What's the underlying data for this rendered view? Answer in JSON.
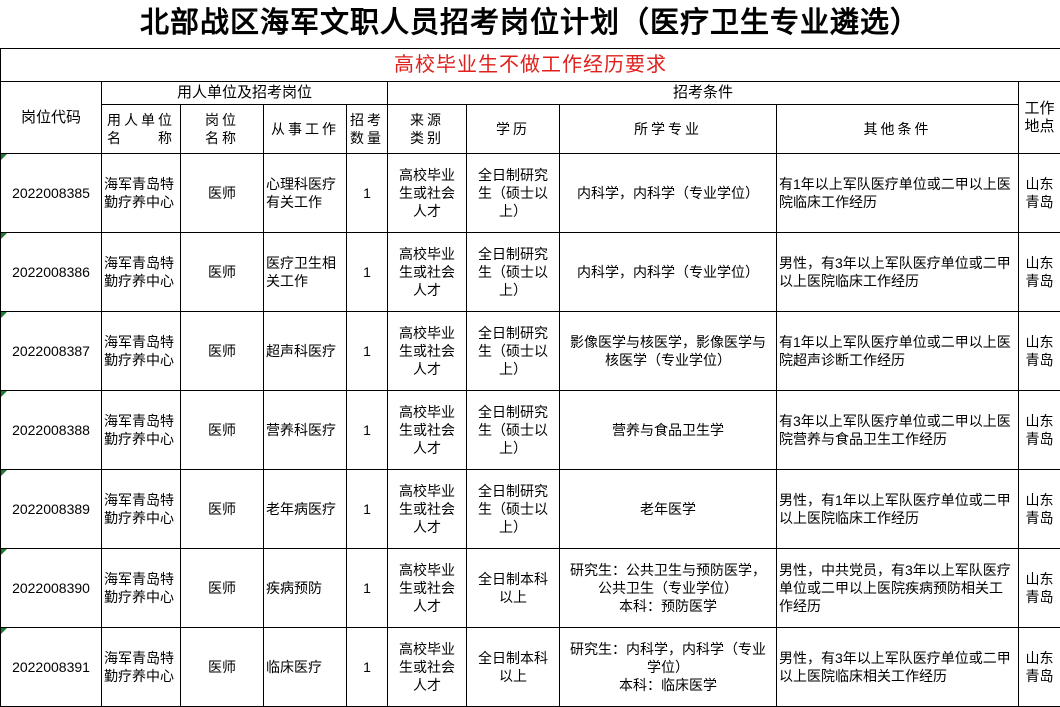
{
  "title": "北部战区海军文职人员招考岗位计划（医疗卫生专业遴选）",
  "banner": "高校毕业生不做工作经历要求",
  "headers": {
    "code": "岗位代码",
    "group_unit": "用人单位及招考岗位",
    "group_conditions": "招考条件",
    "unit_name": "用人单位\n名　　称",
    "post_name": "岗位\n名称",
    "work": "从事工作",
    "count": "招考\n数量",
    "source": "来源\n类别",
    "education": "学历",
    "major": "所学专业",
    "other": "其他条件",
    "location": "工作\n地点"
  },
  "rows": [
    {
      "code": "2022008385",
      "unit": "海军青岛特\n勤疗养中心",
      "post": "医师",
      "work": "心理科医疗\n有关工作",
      "count": "1",
      "source": "高校毕业\n生或社会\n人才",
      "education": "全日制研究\n生（硕士以\n上）",
      "major": "内科学，内科学（专业学位）",
      "other": "有1年以上军队医疗单位或二甲以上医院临床工作经历",
      "location": "山东\n青岛"
    },
    {
      "code": "2022008386",
      "unit": "海军青岛特\n勤疗养中心",
      "post": "医师",
      "work": "医疗卫生相\n关工作",
      "count": "1",
      "source": "高校毕业\n生或社会\n人才",
      "education": "全日制研究\n生（硕士以\n上）",
      "major": "内科学，内科学（专业学位）",
      "other": "男性，有3年以上军队医疗单位或二甲以上医院临床工作经历",
      "location": "山东\n青岛"
    },
    {
      "code": "2022008387",
      "unit": "海军青岛特\n勤疗养中心",
      "post": "医师",
      "work": "超声科医疗",
      "count": "1",
      "source": "高校毕业\n生或社会\n人才",
      "education": "全日制研究\n生（硕士以\n上）",
      "major": "影像医学与核医学，影像医学与\n核医学（专业学位）",
      "other": "有1年以上军队医疗单位或二甲以上医院超声诊断工作经历",
      "location": "山东\n青岛"
    },
    {
      "code": "2022008388",
      "unit": "海军青岛特\n勤疗养中心",
      "post": "医师",
      "work": "营养科医疗",
      "count": "1",
      "source": "高校毕业\n生或社会\n人才",
      "education": "全日制研究\n生（硕士以\n上）",
      "major": "营养与食品卫生学",
      "other": "有3年以上军队医疗单位或二甲以上医院营养与食品卫生工作经历",
      "location": "山东\n青岛"
    },
    {
      "code": "2022008389",
      "unit": "海军青岛特\n勤疗养中心",
      "post": "医师",
      "work": "老年病医疗",
      "count": "1",
      "source": "高校毕业\n生或社会\n人才",
      "education": "全日制研究\n生（硕士以\n上）",
      "major": "老年医学",
      "other": "男性，有1年以上军队医疗单位或二甲以上医院临床工作经历",
      "location": "山东\n青岛"
    },
    {
      "code": "2022008390",
      "unit": "海军青岛特\n勤疗养中心",
      "post": "医师",
      "work": "疾病预防",
      "count": "1",
      "source": "高校毕业\n生或社会\n人才",
      "education": "全日制本科\n以上",
      "major": "研究生：公共卫生与预防医学，\n公共卫生（专业学位）\n本科：预防医学",
      "other": "男性，中共党员，有3年以上军队医疗单位或二甲以上医院疾病预防相关工作经历",
      "location": "山东\n青岛"
    },
    {
      "code": "2022008391",
      "unit": "海军青岛特\n勤疗养中心",
      "post": "医师",
      "work": "临床医疗",
      "count": "1",
      "source": "高校毕业\n生或社会\n人才",
      "education": "全日制本科\n以上",
      "major": "研究生：内科学，内科学（专业\n学位）\n本科：临床医学",
      "other": "男性，有3年以上军队医疗单位或二甲以上医院临床相关工作经历",
      "location": "山东\n青岛"
    }
  ],
  "colors": {
    "banner_text": "#e0201c",
    "cell_marker": "#1e7a2e"
  }
}
